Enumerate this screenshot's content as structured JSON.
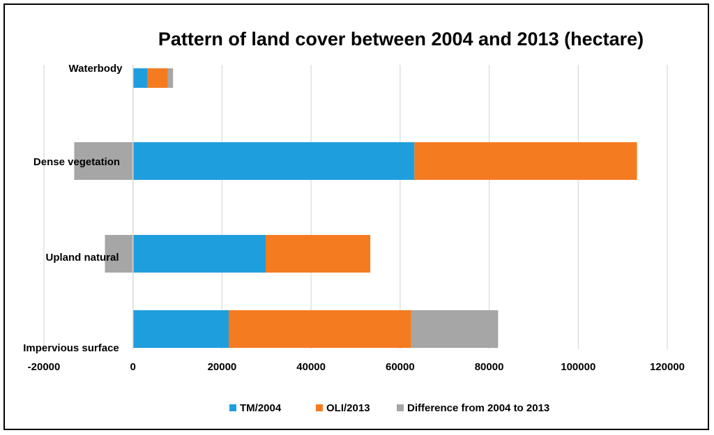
{
  "chart_data": {
    "type": "bar",
    "orientation": "horizontal",
    "stacked": true,
    "title": "Pattern of land cover between 2004 and 2013 (hectare)",
    "xlabel": "",
    "ylabel": "",
    "xlim": [
      -20000,
      120000
    ],
    "x_ticks": [
      -20000,
      0,
      20000,
      40000,
      60000,
      80000,
      100000,
      120000
    ],
    "x_tick_labels": [
      "-20000",
      "0",
      "20000",
      "40000",
      "60000",
      "80000",
      "100000",
      "120000"
    ],
    "grid": true,
    "legend_position": "bottom",
    "categories": [
      "Impervious surface",
      "Upland natural",
      "Dense vegetation",
      "Waterbody"
    ],
    "series": [
      {
        "name": "TM/2004",
        "color": "#1f9ede",
        "values": [
          21500,
          29800,
          63200,
          3300
        ]
      },
      {
        "name": "OLI/2013",
        "color": "#f47b20",
        "values": [
          41000,
          23500,
          50000,
          4500
        ]
      },
      {
        "name": "Difference from 2004 to 2013",
        "color": "#a6a6a6",
        "values": [
          19500,
          -6300,
          -13200,
          1200
        ]
      }
    ]
  }
}
